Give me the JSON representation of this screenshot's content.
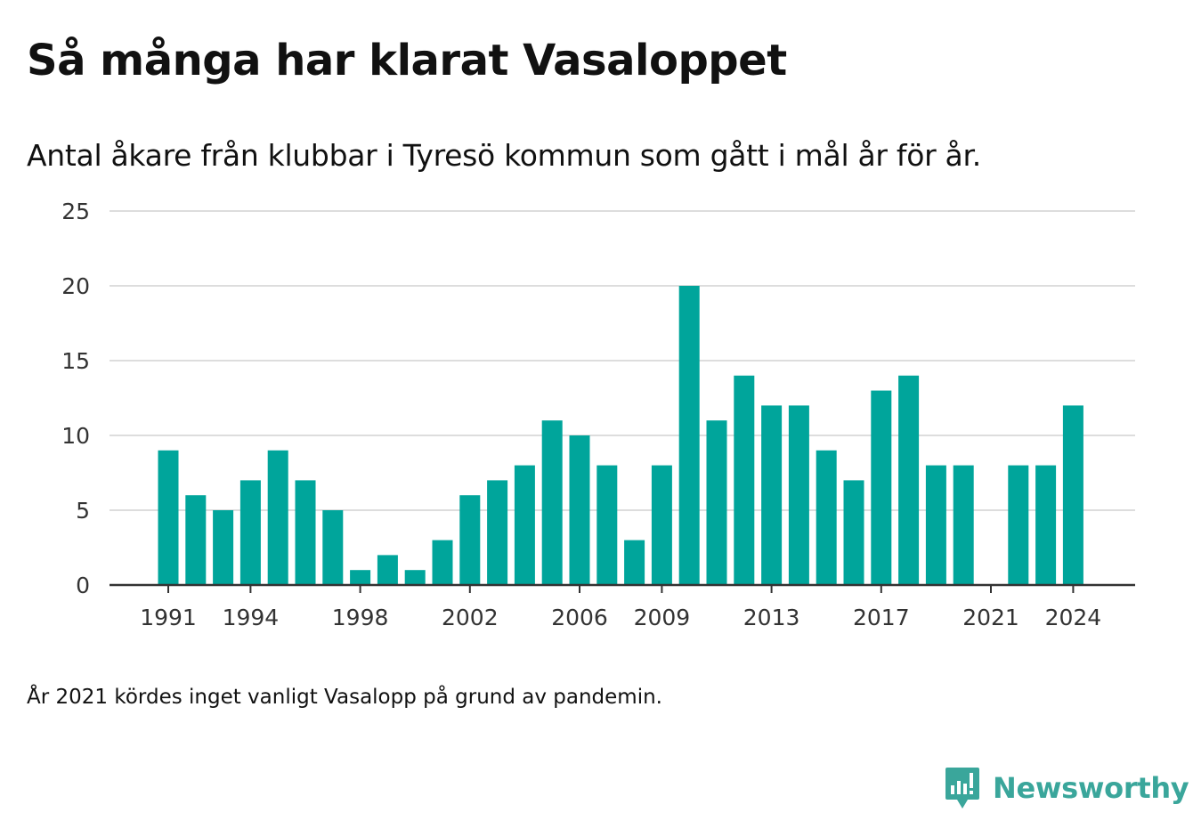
{
  "title": "Så många har klarat Vasaloppet",
  "subtitle": "Antal åkare från klubbar i Tyresö kommun som gått i mål år för år.",
  "footnote": "År 2021 kördes inget vanligt Vasalopp på grund av pandemin.",
  "brand": {
    "name": "Newsworthy",
    "icon": "newsworthy-logo-icon",
    "color": "#3aa69b"
  },
  "chart_data": {
    "type": "bar",
    "title": "Så många har klarat Vasaloppet",
    "subtitle": "Antal åkare från klubbar i Tyresö kommun som gått i mål år för år.",
    "xlabel": "",
    "ylabel": "",
    "ylim": [
      0,
      25
    ],
    "yticks": [
      0,
      5,
      10,
      15,
      20,
      25
    ],
    "xtick_labels": [
      "1991",
      "1994",
      "1998",
      "2002",
      "2006",
      "2009",
      "2013",
      "2017",
      "2021",
      "2024"
    ],
    "grid": true,
    "legend": "none",
    "bar_color": "#00a59b",
    "categories": [
      1991,
      1992,
      1993,
      1994,
      1995,
      1996,
      1997,
      1998,
      1999,
      2000,
      2001,
      2002,
      2003,
      2004,
      2005,
      2006,
      2007,
      2008,
      2009,
      2010,
      2011,
      2012,
      2013,
      2014,
      2015,
      2016,
      2017,
      2018,
      2019,
      2020,
      2021,
      2022,
      2023,
      2024
    ],
    "values": [
      9,
      6,
      5,
      7,
      9,
      7,
      5,
      1,
      2,
      1,
      3,
      6,
      7,
      8,
      11,
      10,
      8,
      3,
      8,
      20,
      11,
      14,
      12,
      12,
      9,
      7,
      13,
      14,
      8,
      8,
      0,
      8,
      8,
      12
    ]
  }
}
